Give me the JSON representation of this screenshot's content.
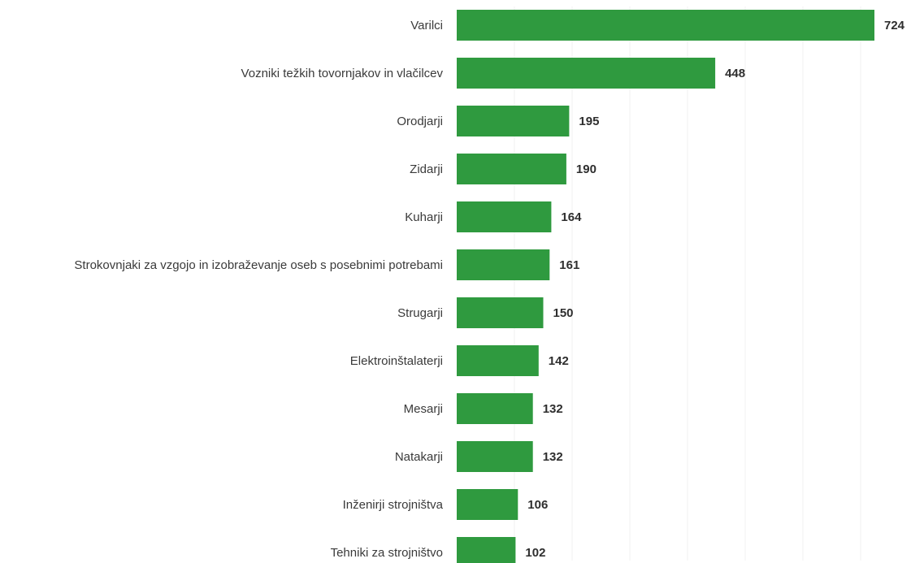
{
  "chart_data": {
    "type": "bar",
    "orientation": "horizontal",
    "title": "",
    "xlabel": "",
    "ylabel": "",
    "categories": [
      "Varilci",
      "Vozniki težkih tovornjakov in vlačilcev",
      "Orodjarji",
      "Zidarji",
      "Kuharji",
      "Strokovnjaki za vzgojo in izobraževanje oseb s posebnimi potrebami",
      "Strugarji",
      "Elektroinštalaterji",
      "Mesarji",
      "Natakarji",
      "Inženirji strojništva",
      "Tehniki za strojništvo"
    ],
    "values": [
      724,
      448,
      195,
      190,
      164,
      161,
      150,
      142,
      132,
      132,
      106,
      102
    ],
    "data_labels": [
      "724",
      "448",
      "195",
      "190",
      "164",
      "161",
      "150",
      "142",
      "132",
      "132",
      "106",
      "102"
    ],
    "xlim": [
      0,
      800
    ],
    "grid": true,
    "legend": "none",
    "bar_color": "#2f9a3f"
  }
}
